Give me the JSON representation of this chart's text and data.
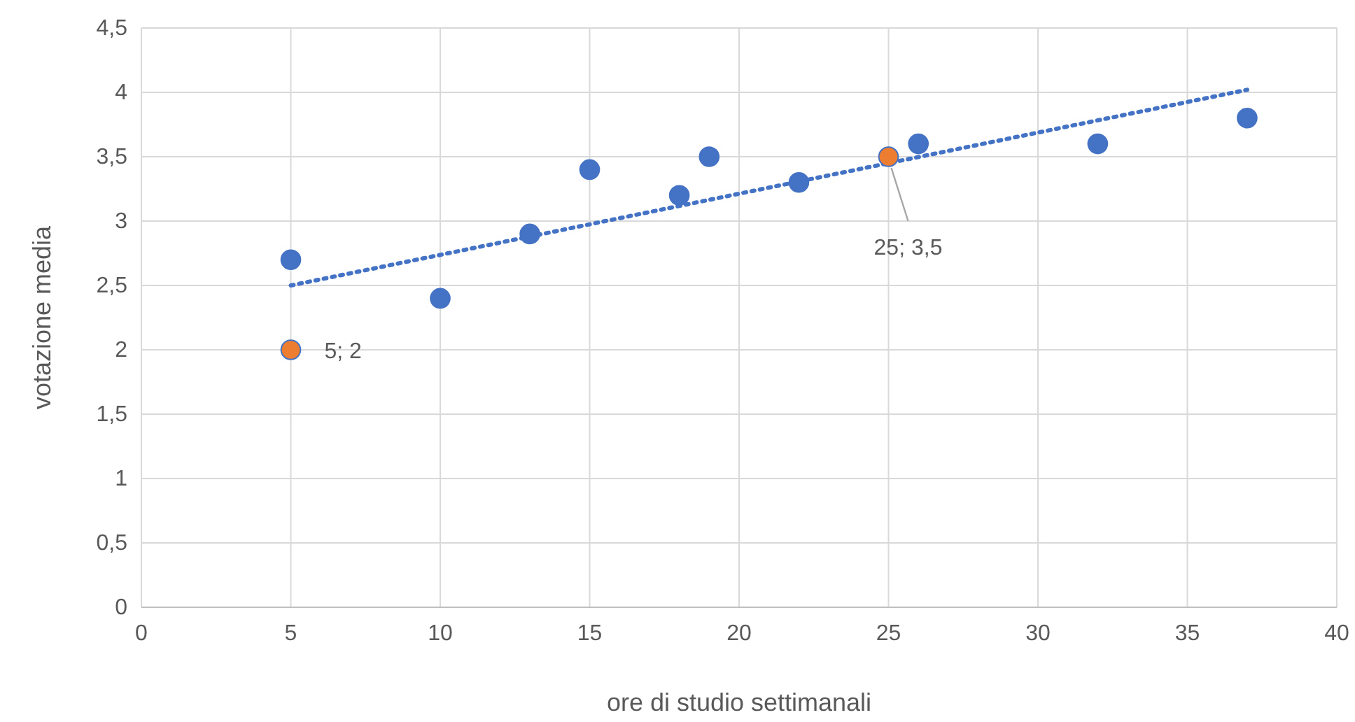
{
  "chart_data": {
    "type": "scatter",
    "xlabel": "ore di studio settimanali",
    "ylabel": "votazione media",
    "xlim": [
      0,
      40
    ],
    "xticks": [
      0,
      5,
      10,
      15,
      20,
      25,
      30,
      35,
      40
    ],
    "ylim": [
      0,
      4.5
    ],
    "yticks": [
      0,
      {
        "value": 0.5,
        "label": "0,5"
      },
      1,
      {
        "value": 1.5,
        "label": "1,5"
      },
      2,
      {
        "value": 2.5,
        "label": "2,5"
      },
      3,
      {
        "value": 3.5,
        "label": "3,5"
      },
      4,
      {
        "value": 4.5,
        "label": "4,5"
      }
    ],
    "grid": true,
    "marker": "circle",
    "series": [
      {
        "type": "scatter",
        "color": "#4472c4",
        "x": [
          5,
          10,
          13,
          15,
          18,
          19,
          22,
          26,
          32,
          37
        ],
        "values": [
          2.7,
          2.4,
          2.9,
          3.4,
          3.2,
          3.5,
          3.3,
          3.6,
          3.6,
          3.8
        ]
      },
      {
        "type": "scatter",
        "color": "#ed7d31",
        "x": [
          5,
          25
        ],
        "values": [
          2,
          3.5
        ]
      },
      {
        "type": "line",
        "color": "#4472c4",
        "line_style": "dotted",
        "marker": "none",
        "x": [
          5,
          37
        ],
        "values": [
          2.5,
          4.02
        ]
      }
    ],
    "annotations": [
      {
        "text": "5; 2",
        "x": 5,
        "y": 2
      },
      {
        "text": "25; 3,5",
        "x": 25,
        "y": 3.5
      }
    ]
  }
}
